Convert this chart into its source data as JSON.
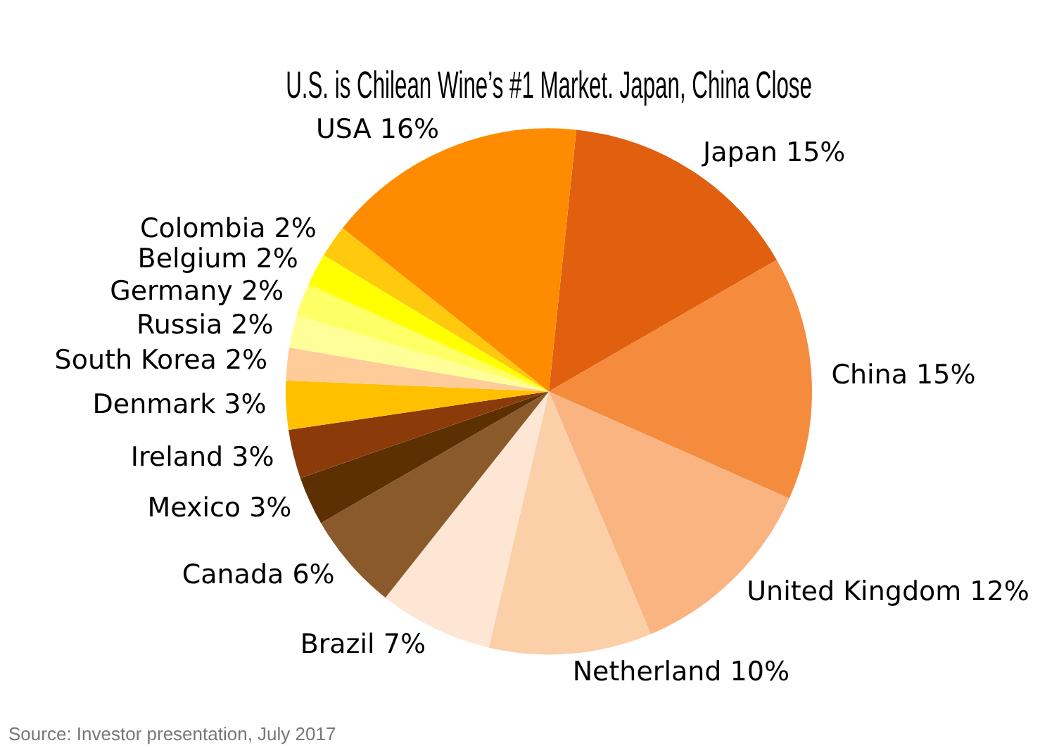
{
  "chart_data": {
    "type": "pie",
    "title": "U.S. is Chilean Wine’s #1 Market. Japan, China Close",
    "categories": [
      "Japan",
      "China",
      "United Kingdom",
      "Netherland",
      "Brazil",
      "Canada",
      "Mexico",
      "Ireland",
      "Denmark",
      "South Korea",
      "Russia",
      "Germany",
      "Belgium",
      "Colombia",
      "USA"
    ],
    "values": [
      15,
      15,
      12,
      10,
      7,
      6,
      3,
      3,
      3,
      2,
      2,
      2,
      2,
      2,
      16
    ],
    "value_labels": [
      "15%",
      "15%",
      "12%",
      "10%",
      "7%",
      "6%",
      "3%",
      "3%",
      "3%",
      "2%",
      "2%",
      "2%",
      "2%",
      "2%",
      "16%"
    ],
    "colors": [
      "#e0600f",
      "#f58b3c",
      "#f9b482",
      "#fbcfa8",
      "#fde6d4",
      "#8b5a2b",
      "#5c3000",
      "#8b3a0a",
      "#ffc000",
      "#ffcc99",
      "#ffff99",
      "#ffff66",
      "#ffff00",
      "#ffc90e",
      "#ff8c00"
    ],
    "legend": false,
    "annotations": [
      "Source: Investor presentation, July 2017"
    ]
  }
}
